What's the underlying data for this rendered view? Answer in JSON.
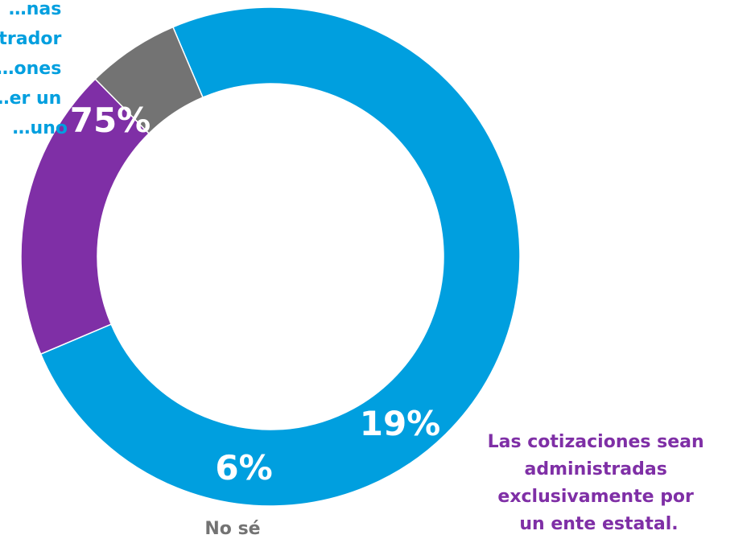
{
  "chart_data": {
    "type": "pie",
    "donut": true,
    "slices": [
      {
        "value": 75,
        "value_label": "75%",
        "label_lines": [
          "…nas",
          "…trador",
          "…ones",
          "…er un",
          "…uno"
        ],
        "color": "#009FDF"
      },
      {
        "value": 19,
        "value_label": "19%",
        "label_lines": [
          "Las cotizaciones sean",
          "administradas",
          "exclusivamente por",
          "un ente estatal."
        ],
        "color": "#7F2FA6"
      },
      {
        "value": 6,
        "value_label": "6%",
        "label_lines": [
          "No sé"
        ],
        "color": "#737373"
      }
    ]
  }
}
